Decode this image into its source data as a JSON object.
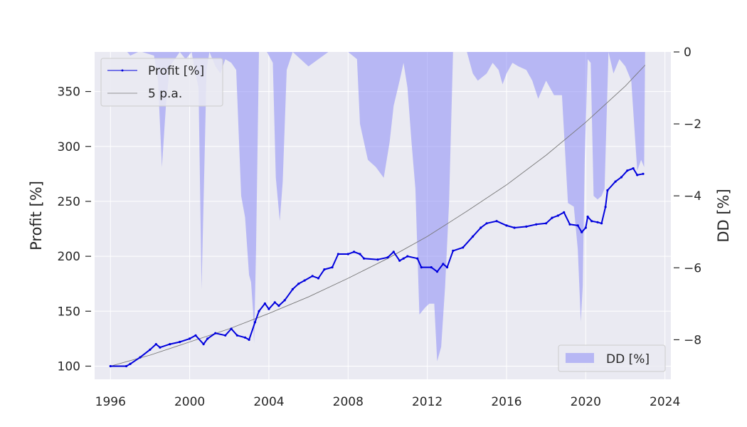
{
  "chart_data": {
    "type": "line",
    "title": "",
    "xlabel": "",
    "ylabel": "Profit [%]",
    "ylabel_right": "DD [%]",
    "xlim": [
      1995.2,
      2024.3
    ],
    "ylim": [
      88,
      386
    ],
    "ylim_right": [
      -9.1,
      0
    ],
    "x_ticks": [
      1996,
      2000,
      2004,
      2008,
      2012,
      2016,
      2020,
      2024
    ],
    "y_ticks": [
      100,
      150,
      200,
      250,
      300,
      350
    ],
    "y_ticks_right": [
      0,
      -2,
      -4,
      -6,
      -8
    ],
    "grid": true,
    "legend_upper": {
      "placement": "top-left",
      "entries": [
        "Profit [%]",
        "5 p.a."
      ]
    },
    "legend_lower": {
      "placement": "bottom-right",
      "entries": [
        "DD [%]"
      ]
    },
    "colors": {
      "profit": "#0000dd",
      "trend": "#777777",
      "drawdown": "#8c8cf5",
      "background": "#eaeaf2",
      "grid": "#ffffff"
    },
    "series": [
      {
        "name": "Profit [%]",
        "axis": "left",
        "x": [
          1996.0,
          1996.8,
          1997.0,
          1997.5,
          1998.0,
          1998.3,
          1998.5,
          1999.0,
          1999.5,
          2000.0,
          2000.3,
          2000.7,
          2000.9,
          2001.3,
          2001.8,
          2002.1,
          2002.4,
          2002.8,
          2003.0,
          2003.3,
          2003.5,
          2003.8,
          2004.0,
          2004.3,
          2004.5,
          2004.8,
          2005.2,
          2005.5,
          2005.8,
          2006.2,
          2006.5,
          2006.8,
          2007.2,
          2007.5,
          2008.0,
          2008.3,
          2008.6,
          2008.8,
          2009.5,
          2010.0,
          2010.3,
          2010.6,
          2010.8,
          2011.0,
          2011.5,
          2011.7,
          2012.2,
          2012.5,
          2012.8,
          2013.0,
          2013.3,
          2013.8,
          2014.3,
          2014.7,
          2015.0,
          2015.5,
          2016.0,
          2016.4,
          2017.0,
          2017.5,
          2018.0,
          2018.3,
          2018.6,
          2018.9,
          2019.2,
          2019.6,
          2019.8,
          2020.0,
          2020.1,
          2020.3,
          2020.6,
          2020.8,
          2021.0,
          2021.1,
          2021.5,
          2021.8,
          2022.1,
          2022.4,
          2022.6,
          2022.9
        ],
        "y": [
          100,
          100,
          102,
          108,
          115,
          120,
          117,
          120,
          122,
          125,
          128,
          120,
          125,
          130,
          128,
          134,
          128,
          126,
          124,
          140,
          150,
          157,
          152,
          158,
          155,
          160,
          170,
          175,
          178,
          182,
          180,
          188,
          190,
          202,
          202,
          204,
          202,
          198,
          197,
          199,
          204,
          196,
          198,
          200,
          198,
          190,
          190,
          186,
          193,
          190,
          205,
          208,
          218,
          226,
          230,
          232,
          228,
          226,
          227,
          229,
          230,
          235,
          237,
          240,
          229,
          228,
          222,
          226,
          236,
          232,
          231,
          230,
          245,
          260,
          268,
          272,
          278,
          280,
          274,
          275
        ]
      },
      {
        "name": "5 p.a.",
        "axis": "left",
        "x": [
          1996,
          1998,
          2000,
          2002,
          2004,
          2006,
          2008,
          2010,
          2012,
          2014,
          2016,
          2018,
          2020,
          2022,
          2023
        ],
        "y": [
          100,
          110,
          122,
          134,
          148,
          163,
          180,
          198,
          218,
          241,
          265,
          292,
          322,
          355,
          374
        ]
      },
      {
        "name": "DD [%]",
        "axis": "right",
        "type": "area",
        "x": [
          1996.0,
          1996.85,
          1997.0,
          1997.4,
          1997.6,
          1998.2,
          1998.4,
          1998.6,
          1998.8,
          1999.0,
          1999.5,
          1999.8,
          2000.1,
          2000.25,
          2000.45,
          2000.6,
          2000.75,
          2000.85,
          2001.0,
          2001.3,
          2001.55,
          2001.8,
          2002.1,
          2002.35,
          2002.6,
          2002.8,
          2003.0,
          2003.1,
          2003.2,
          2003.25,
          2003.35,
          2003.5,
          2003.9,
          2004.2,
          2004.35,
          2004.55,
          2004.7,
          2004.9,
          2005.2,
          2006.0,
          2007.0,
          2008.0,
          2008.45,
          2008.6,
          2009.0,
          2009.4,
          2009.8,
          2010.1,
          2010.3,
          2010.6,
          2010.8,
          2011.0,
          2011.2,
          2011.4,
          2011.6,
          2011.9,
          2012.1,
          2012.35,
          2012.5,
          2012.7,
          2012.9,
          2013.1,
          2013.3,
          2013.6,
          2014.0,
          2014.3,
          2014.55,
          2015.0,
          2015.3,
          2015.6,
          2015.8,
          2016.0,
          2016.3,
          2016.6,
          2017.0,
          2017.3,
          2017.6,
          2018.0,
          2018.4,
          2018.8,
          2019.1,
          2019.4,
          2019.6,
          2019.75,
          2019.85,
          2019.95,
          2020.1,
          2020.25,
          2020.4,
          2020.6,
          2020.8,
          2020.95,
          2021.15,
          2021.4,
          2021.7,
          2022.0,
          2022.3,
          2022.6,
          2022.8,
          2022.95,
          2023.0
        ],
        "y": [
          0,
          0,
          -0.1,
          0,
          0,
          -0.1,
          -0.8,
          -3.2,
          -1.5,
          -0.4,
          0,
          -0.2,
          0,
          -0.5,
          -1.0,
          -6.6,
          -3.0,
          -0.5,
          0,
          -0.4,
          -0.6,
          -0.2,
          -0.3,
          -0.5,
          -4.0,
          -4.6,
          -6.2,
          -6.4,
          -7.2,
          -8.1,
          -5.5,
          0,
          0,
          -0.3,
          -3.5,
          -4.7,
          -3.6,
          -0.5,
          0,
          -0.4,
          0,
          0,
          -0.2,
          -2.0,
          -3.0,
          -3.2,
          -3.5,
          -2.5,
          -1.5,
          -0.8,
          -0.3,
          -1.0,
          -2.5,
          -3.8,
          -7.3,
          -7.1,
          -7.0,
          -7.0,
          -8.6,
          -8.2,
          -6.5,
          -4.2,
          0,
          0,
          0,
          -0.6,
          -0.8,
          -0.6,
          -0.3,
          -0.5,
          -0.9,
          -0.6,
          -0.3,
          -0.4,
          -0.5,
          -0.8,
          -1.3,
          -0.8,
          -1.2,
          -1.2,
          -4.2,
          -4.3,
          -5.5,
          -7.5,
          -6.5,
          -3.0,
          -0.2,
          -0.3,
          -4.0,
          -4.1,
          -4.0,
          -3.8,
          0,
          -0.6,
          -0.2,
          -0.4,
          -0.8,
          -3.3,
          -3.0,
          -3.2,
          0
        ]
      }
    ]
  }
}
